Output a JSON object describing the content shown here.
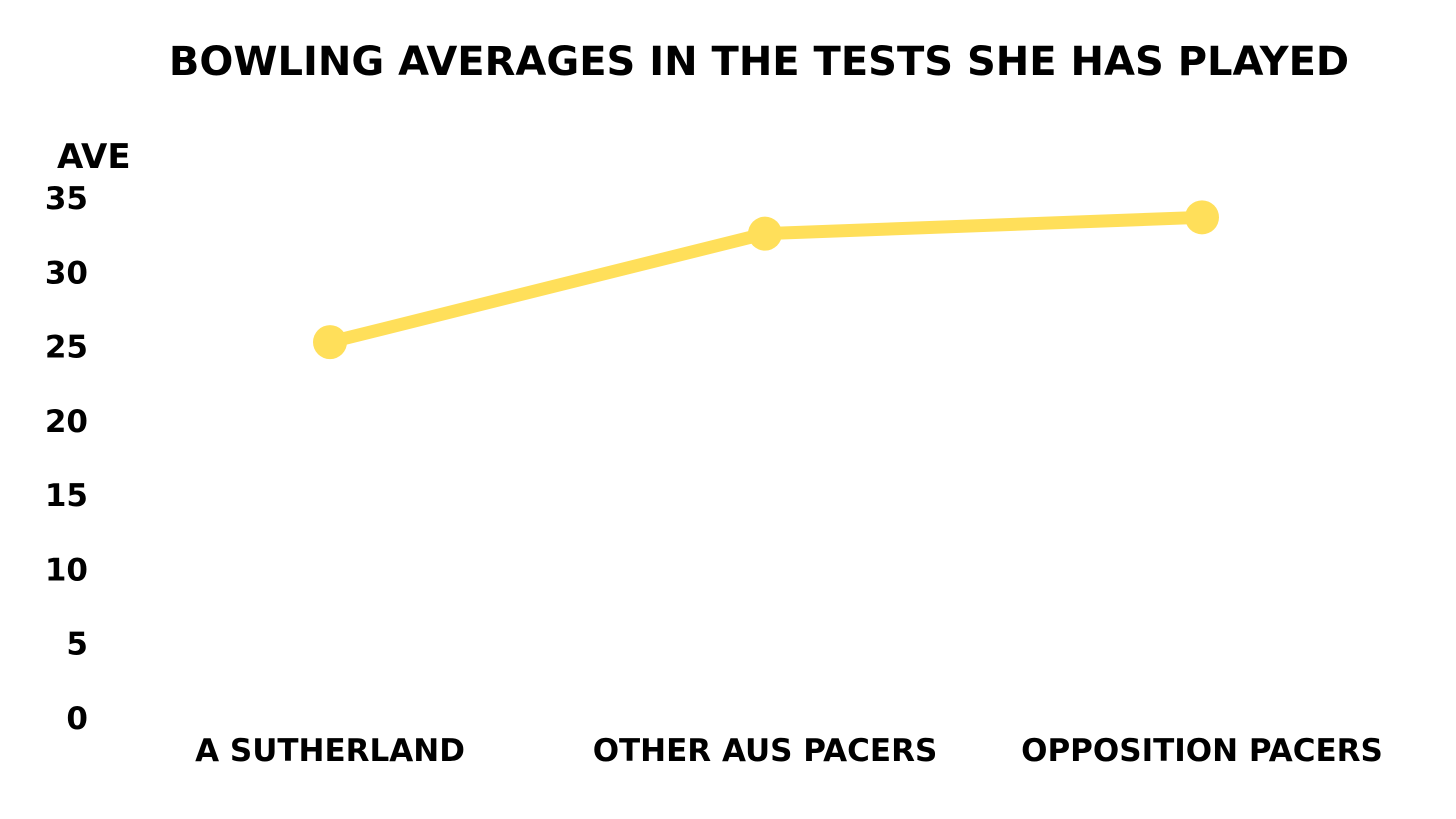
{
  "chart_data": {
    "type": "line",
    "title": "BOWLING AVERAGES IN THE TESTS SHE HAS PLAYED",
    "ylabel": "AVE",
    "xlabel": "",
    "categories": [
      "A SUTHERLAND",
      "OTHER AUS PACERS",
      "OPPOSITION PACERS"
    ],
    "series": [
      {
        "values": [
          25.3,
          32.6,
          33.7
        ]
      }
    ],
    "ylim": [
      0,
      35
    ],
    "yticks": [
      "0",
      "5",
      "10",
      "15",
      "20",
      "25",
      "30",
      "35"
    ],
    "grid": false,
    "line_color": "#FFDF5A"
  }
}
